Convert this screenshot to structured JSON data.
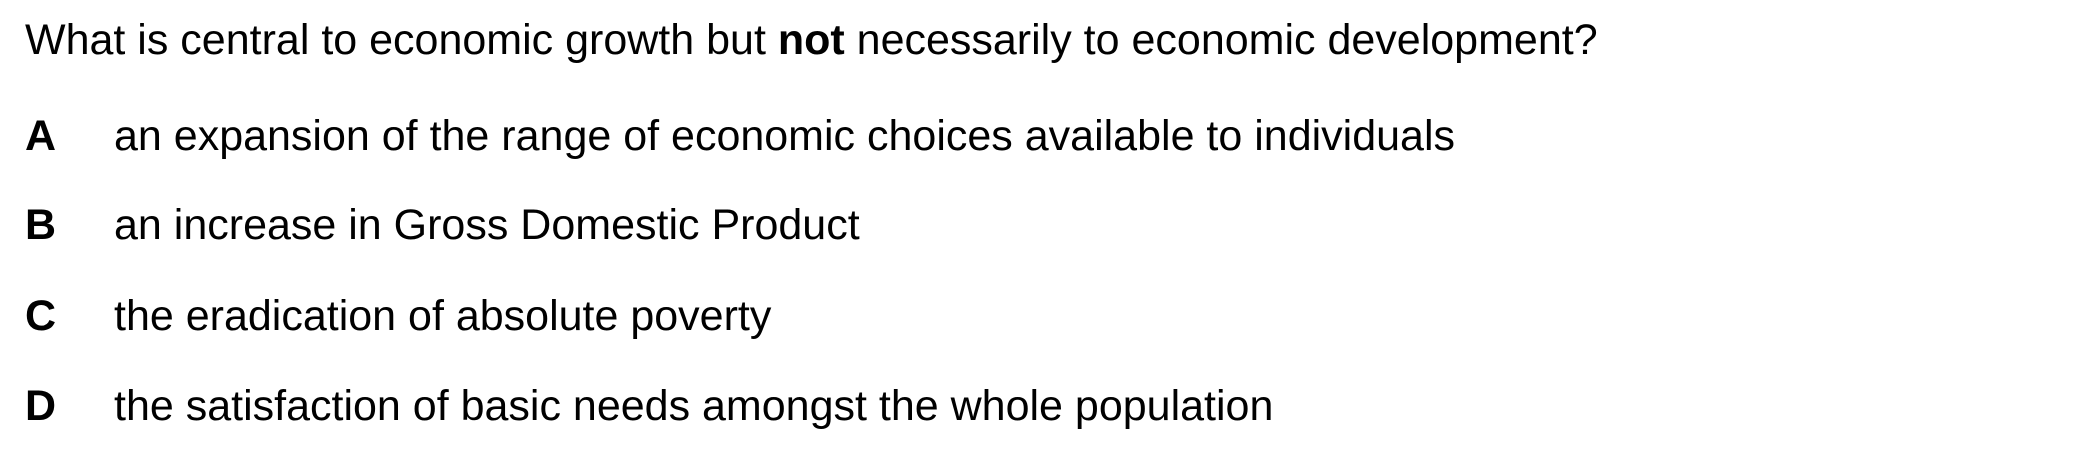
{
  "question": {
    "before": "What is central to economic growth but ",
    "emphasis": "not",
    "after": " necessarily to economic development?"
  },
  "options": [
    {
      "letter": "A",
      "text": "an expansion of the range of economic choices available to individuals"
    },
    {
      "letter": "B",
      "text": "an increase in Gross Domestic Product"
    },
    {
      "letter": "C",
      "text": "the eradication of absolute poverty"
    },
    {
      "letter": "D",
      "text": "the satisfaction of basic needs amongst the whole population"
    }
  ]
}
